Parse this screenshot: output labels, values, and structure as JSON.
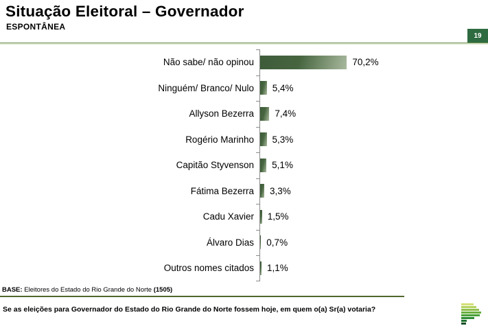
{
  "header": {
    "title": "Situação Eleitoral – Governador",
    "subtitle": "ESPONTÂNEA",
    "page_number": "19",
    "accent_color": "#2e6b40"
  },
  "chart_data": {
    "type": "bar",
    "orientation": "horizontal",
    "title": "Situação Eleitoral – Governador (Espontânea)",
    "categories": [
      "Não sabe/ não opinou",
      "Ninguém/ Branco/ Nulo",
      "Allyson Bezerra",
      "Rogério Marinho",
      "Capitão Styvenson",
      "Fátima Bezerra",
      "Cadu Xavier",
      "Álvaro Dias",
      "Outros nomes citados"
    ],
    "values": [
      70.2,
      5.4,
      7.4,
      5.3,
      5.1,
      3.3,
      1.5,
      0.7,
      1.1
    ],
    "value_labels": [
      "70,2%",
      "5,4%",
      "7,4%",
      "5,3%",
      "5,1%",
      "3,3%",
      "1,5%",
      "0,7%",
      "1,1%"
    ],
    "unit": "%",
    "xlim": [
      0,
      75
    ],
    "grid": false,
    "legend": false,
    "bar_color_dark": "#3e5b3a",
    "bar_color_light": "#a9b99e"
  },
  "footer": {
    "base_prefix": "BASE:",
    "base_text": " Eleitores do Estado do Rio Grande do Norte ",
    "base_count": "(1505)",
    "question": "Se as eleições para Governador do Estado do Rio Grande do Norte fossem hoje, em quem o(a) Sr(a) votaria?"
  },
  "logo": {
    "name": "institute-logo",
    "bars": [
      {
        "w": 18,
        "color": "#d4e077"
      },
      {
        "w": 22,
        "color": "#b5d35e"
      },
      {
        "w": 26,
        "color": "#8fbf4d"
      },
      {
        "w": 29,
        "color": "#69af3f"
      },
      {
        "w": 27,
        "color": "#49a038"
      },
      {
        "w": 19,
        "color": "#2e8c33"
      },
      {
        "w": 8,
        "color": "#1c6f2c"
      },
      {
        "w": 7,
        "color": "#174f28"
      }
    ]
  }
}
